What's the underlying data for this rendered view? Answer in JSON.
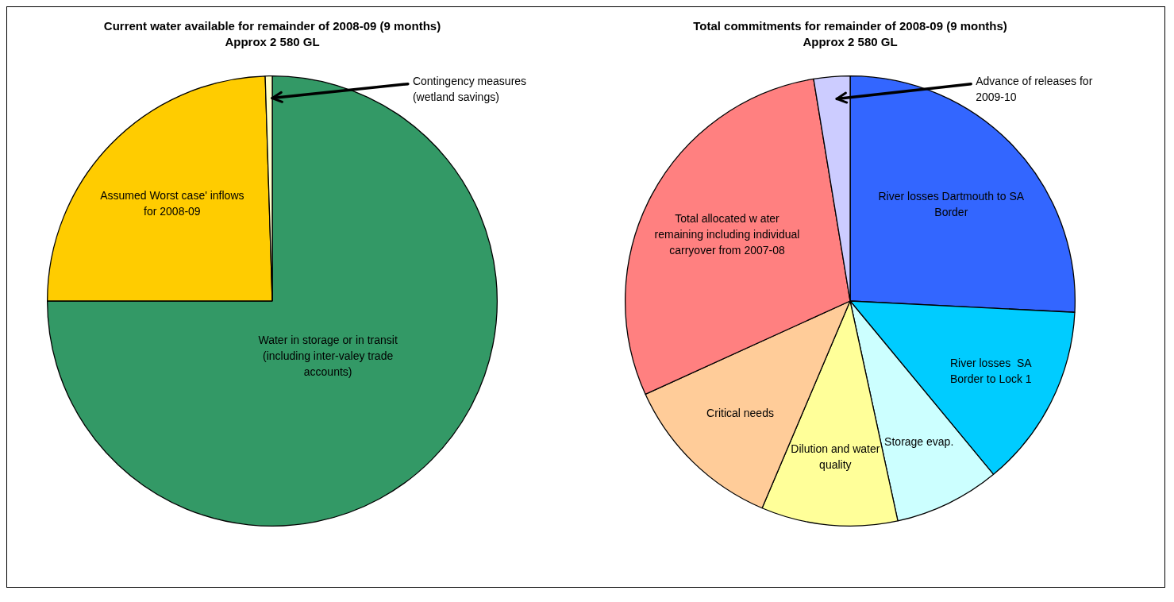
{
  "chart_data": [
    {
      "type": "pie",
      "title": "Current water available for remainder of 2008-09 (9 months)",
      "subtitle": "Approx 2 580 GL",
      "categories": [
        "Water in storage or in transit (including inter-valey trade accounts)",
        "Assumed Worst case' inflows for 2008-09",
        "Contingency measures (wetland savings)"
      ],
      "values": [
        75,
        24.5,
        0.5
      ],
      "colors": [
        "#339966",
        "#ffcc00",
        "#ffffcc"
      ],
      "legend": false
    },
    {
      "type": "pie",
      "title": "Total commitments for remainder of 2008-09 (9 months)",
      "subtitle": "Approx 2 580 GL",
      "categories": [
        "River losses Dartmouth to SA Border",
        "River losses  SA Border to Lock 1",
        "Storage evap.",
        "Dilution and water quality",
        "Critical needs",
        "Total allocated w ater remaining including individual carryover from 2007-08",
        "Advance of releases for 2009-10"
      ],
      "values": [
        25.8,
        13.2,
        7.6,
        9.8,
        11.8,
        29.2,
        2.6
      ],
      "colors": [
        "#3366ff",
        "#00ccff",
        "#ccffff",
        "#ffff99",
        "#ffcc99",
        "#ff8080",
        "#ccccff"
      ],
      "legend": false
    }
  ]
}
